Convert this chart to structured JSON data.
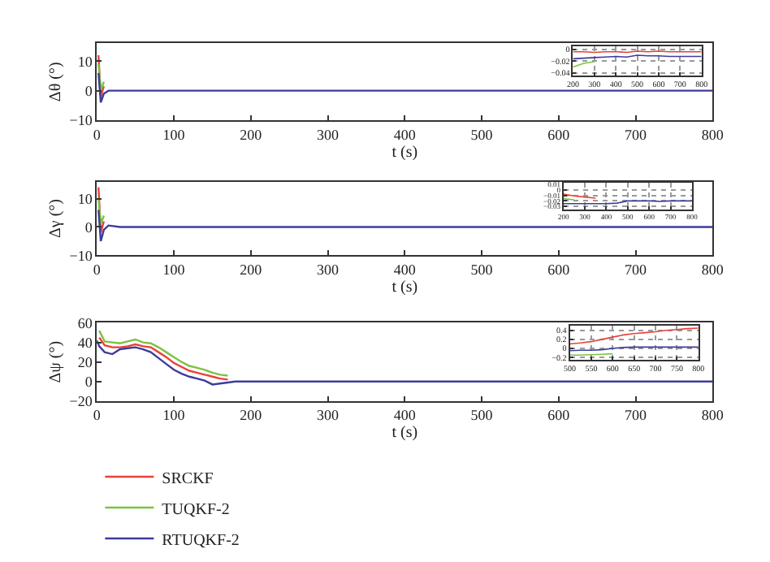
{
  "chart_data": [
    {
      "type": "line",
      "xlabel": "t (s)",
      "ylabel": "Δθ (°)",
      "xlim": [
        0,
        800
      ],
      "xticks": [
        0,
        100,
        200,
        300,
        400,
        500,
        600,
        700,
        800
      ],
      "ylim": [
        -10,
        16
      ],
      "yticks": [
        -10,
        0,
        10
      ],
      "grid": false,
      "series": [
        {
          "color": "#e8413a",
          "x": [
            2,
            5,
            9
          ],
          "values": [
            12,
            -2,
            1.5
          ]
        },
        {
          "color": "#7cc242",
          "x": [
            2,
            5,
            9
          ],
          "values": [
            9,
            0,
            3
          ]
        },
        {
          "color": "#3c3c9c",
          "x": [
            2,
            5,
            9,
            15,
            30,
            800
          ],
          "values": [
            6,
            -4,
            -1,
            0,
            0,
            0
          ]
        }
      ]
    },
    {
      "type": "line",
      "xlim": [
        200,
        800
      ],
      "xticks": [
        200,
        300,
        400,
        500,
        600,
        700,
        800
      ],
      "ylim": [
        -0.045,
        0.005
      ],
      "yticks": [
        0,
        -0.02,
        -0.04
      ],
      "grid": true,
      "series": [
        {
          "color": "#e8413a",
          "x": [
            200,
            250,
            300,
            350,
            400,
            450,
            500,
            550,
            600,
            650,
            700,
            750,
            800
          ],
          "values": [
            -0.004,
            -0.004,
            -0.005,
            -0.004,
            -0.004,
            -0.005,
            -0.003,
            -0.004,
            -0.003,
            -0.004,
            -0.004,
            -0.004,
            -0.004
          ]
        },
        {
          "color": "#7cc242",
          "x": [
            200,
            250,
            300
          ],
          "values": [
            -0.03,
            -0.024,
            -0.021
          ]
        },
        {
          "color": "#3c3c9c",
          "x": [
            200,
            250,
            300,
            350,
            400,
            450,
            500,
            550,
            600,
            650,
            700,
            750,
            800
          ],
          "values": [
            -0.016,
            -0.015,
            -0.014,
            -0.013,
            -0.012,
            -0.013,
            -0.01,
            -0.011,
            -0.011,
            -0.012,
            -0.012,
            -0.012,
            -0.012
          ]
        }
      ]
    },
    {
      "type": "line",
      "xlabel": "t (s)",
      "ylabel": "Δγ (°)",
      "xlim": [
        0,
        800
      ],
      "xticks": [
        0,
        100,
        200,
        300,
        400,
        500,
        600,
        700,
        800
      ],
      "ylim": [
        -10,
        16
      ],
      "yticks": [
        -10,
        0,
        10
      ],
      "grid": false,
      "series": [
        {
          "color": "#e8413a",
          "x": [
            2,
            5,
            9
          ],
          "values": [
            14,
            -2,
            2
          ]
        },
        {
          "color": "#7cc242",
          "x": [
            2,
            5,
            9
          ],
          "values": [
            10,
            1,
            4
          ]
        },
        {
          "color": "#3c3c9c",
          "x": [
            2,
            5,
            9,
            15,
            30,
            800
          ],
          "values": [
            6,
            -5,
            -1,
            0.5,
            0,
            0
          ]
        }
      ]
    },
    {
      "type": "line",
      "xlim": [
        200,
        800
      ],
      "xticks": [
        200,
        300,
        400,
        500,
        600,
        700,
        800
      ],
      "ylim": [
        -0.035,
        0.012
      ],
      "yticks": [
        0.01,
        0,
        -0.01,
        -0.02,
        -0.03
      ],
      "grid": true,
      "series": [
        {
          "color": "#e8413a",
          "x": [
            200,
            250,
            300,
            350
          ],
          "values": [
            -0.008,
            -0.011,
            -0.013,
            -0.015
          ]
        },
        {
          "color": "#7cc242",
          "x": [
            200,
            250
          ],
          "values": [
            -0.016,
            -0.018
          ]
        },
        {
          "color": "#3c3c9c",
          "x": [
            200,
            250,
            300,
            350,
            400,
            450,
            500,
            550,
            600,
            650,
            700,
            750,
            800
          ],
          "values": [
            -0.025,
            -0.025,
            -0.025,
            -0.025,
            -0.025,
            -0.024,
            -0.02,
            -0.02,
            -0.02,
            -0.021,
            -0.02,
            -0.02,
            -0.02
          ]
        }
      ]
    },
    {
      "type": "line",
      "xlabel": "t (s)",
      "ylabel": "Δψ (°)",
      "xlim": [
        0,
        800
      ],
      "xticks": [
        0,
        100,
        200,
        300,
        400,
        500,
        600,
        700,
        800
      ],
      "ylim": [
        -20,
        60
      ],
      "yticks": [
        -20,
        0,
        20,
        40,
        60
      ],
      "grid": false,
      "legend": "bottom left",
      "series": [
        {
          "name": "SRCKF",
          "color": "#e8413a",
          "x": [
            3,
            10,
            20,
            30,
            40,
            50,
            60,
            70,
            80,
            90,
            100,
            110,
            120,
            130,
            140,
            150,
            160,
            170
          ],
          "values": [
            45,
            37,
            35,
            35,
            36,
            38,
            36,
            35,
            30,
            25,
            19,
            15,
            11,
            9,
            7,
            5,
            3,
            2
          ]
        },
        {
          "name": "TUQKF-2",
          "color": "#7cc242",
          "x": [
            3,
            10,
            20,
            30,
            40,
            50,
            60,
            70,
            80,
            90,
            100,
            110,
            120,
            130,
            140,
            150,
            160,
            170
          ],
          "values": [
            52,
            41,
            40,
            39,
            41,
            43,
            40,
            39,
            35,
            30,
            25,
            20,
            16,
            14,
            12,
            9,
            7,
            6
          ]
        },
        {
          "name": "RTUQKF-2",
          "color": "#3c3c9c",
          "x": [
            0,
            3,
            10,
            20,
            30,
            40,
            50,
            60,
            70,
            80,
            90,
            100,
            110,
            120,
            130,
            140,
            150,
            160,
            170,
            180,
            200,
            300,
            800
          ],
          "values": [
            42,
            36,
            30,
            28,
            33,
            34,
            35,
            33,
            30,
            24,
            18,
            12,
            8,
            5,
            3,
            1,
            -3,
            -2,
            -1,
            0,
            0,
            0,
            0
          ]
        }
      ]
    },
    {
      "type": "line",
      "xlim": [
        500,
        800
      ],
      "xticks": [
        500,
        550,
        600,
        650,
        700,
        750,
        800
      ],
      "ylim": [
        -0.25,
        0.5
      ],
      "yticks": [
        0.4,
        0.2,
        0,
        -0.2
      ],
      "grid": true,
      "series": [
        {
          "color": "#e8413a",
          "x": [
            500,
            525,
            550,
            575,
            600,
            625,
            650,
            675,
            700,
            725,
            750,
            775,
            800
          ],
          "values": [
            0.1,
            0.12,
            0.15,
            0.2,
            0.25,
            0.3,
            0.33,
            0.35,
            0.37,
            0.4,
            0.42,
            0.44,
            0.45
          ]
        },
        {
          "color": "#7cc242",
          "x": [
            500,
            525,
            550,
            575,
            600
          ],
          "values": [
            -0.15,
            -0.15,
            -0.14,
            -0.13,
            -0.12
          ]
        },
        {
          "color": "#3c3c9c",
          "x": [
            500,
            525,
            550,
            575,
            600,
            625,
            650,
            675,
            700,
            725,
            750,
            775,
            800
          ],
          "values": [
            -0.05,
            -0.04,
            -0.04,
            -0.03,
            0,
            0.02,
            0.03,
            0.03,
            0.03,
            0.03,
            0.03,
            0.03,
            0.03
          ]
        }
      ]
    }
  ]
}
